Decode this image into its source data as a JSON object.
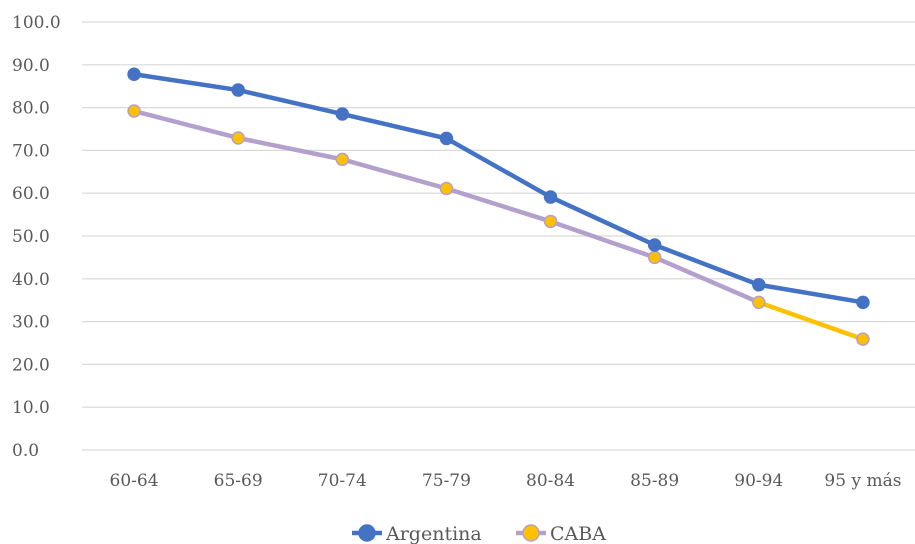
{
  "chart_data": {
    "type": "line",
    "categories": [
      "60-64",
      "65-69",
      "70-74",
      "75-79",
      "80-84",
      "85-89",
      "90-94",
      "95 y más"
    ],
    "series": [
      {
        "name": "Argentina",
        "values": [
          87.8,
          84.1,
          78.5,
          72.8,
          59.1,
          47.9,
          38.6,
          34.5
        ],
        "line_color": "#4472c4",
        "marker_color": "#4472c4"
      },
      {
        "name": "CABA",
        "values": [
          79.2,
          72.9,
          67.9,
          61.1,
          53.4,
          45.0,
          34.5,
          25.9
        ],
        "line_color": "#b4a0cc",
        "last_segment_color": "#ffc000",
        "marker_color": "#ffc000",
        "marker_edge_color": "#b4a0cc"
      }
    ],
    "y_ticks": [
      "0.0",
      "10.0",
      "20.0",
      "30.0",
      "40.0",
      "50.0",
      "60.0",
      "70.0",
      "80.0",
      "90.0",
      "100.0"
    ],
    "ylim": [
      0,
      100
    ],
    "grid": true,
    "legend_position": "bottom",
    "gridline_color": "#d9d9d9"
  }
}
